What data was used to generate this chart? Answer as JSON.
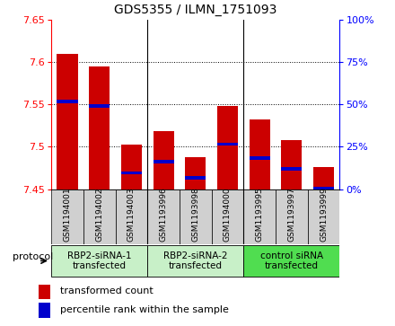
{
  "title": "GDS5355 / ILMN_1751093",
  "samples": [
    "GSM1194001",
    "GSM1194002",
    "GSM1194003",
    "GSM1193996",
    "GSM1193998",
    "GSM1194000",
    "GSM1193995",
    "GSM1193997",
    "GSM1193999"
  ],
  "red_values": [
    7.61,
    7.595,
    7.502,
    7.518,
    7.488,
    7.548,
    7.532,
    7.508,
    7.476
  ],
  "blue_values": [
    7.553,
    7.548,
    7.469,
    7.482,
    7.463,
    7.503,
    7.487,
    7.474,
    7.451
  ],
  "ymin": 7.45,
  "ymax": 7.65,
  "yticks": [
    7.45,
    7.5,
    7.55,
    7.6,
    7.65
  ],
  "y2ticks": [
    0,
    25,
    50,
    75,
    100
  ],
  "groups": [
    {
      "label": "RBP2-siRNA-1\ntransfected",
      "start": 0,
      "end": 3,
      "color": "#c8f0c8"
    },
    {
      "label": "RBP2-siRNA-2\ntransfected",
      "start": 3,
      "end": 6,
      "color": "#c8f0c8"
    },
    {
      "label": "control siRNA\ntransfected",
      "start": 6,
      "end": 9,
      "color": "#50dd50"
    }
  ],
  "bar_bottom": 7.45,
  "bar_width": 0.65,
  "red_color": "#cc0000",
  "blue_color": "#0000cc",
  "sample_bg": "#d0d0d0",
  "protocol_label": "protocol",
  "legend_red": "transformed count",
  "legend_blue": "percentile rank within the sample"
}
